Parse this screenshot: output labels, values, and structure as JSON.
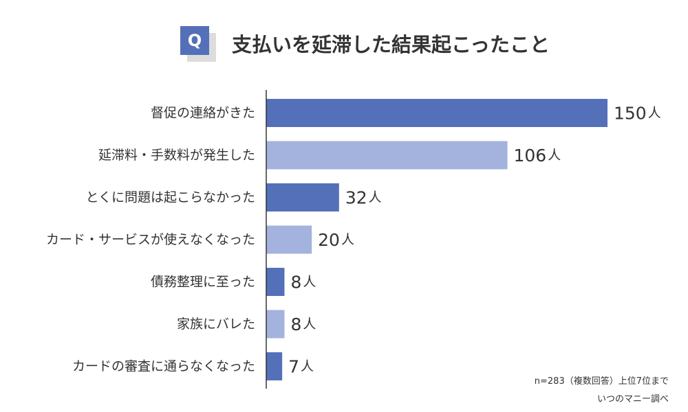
{
  "header": {
    "badge": "Q",
    "title": "支払いを延滞した結果起こったこと"
  },
  "footer": {
    "note": "n=283（複数回答）上位7位まで",
    "source": "いつのマニー調べ"
  },
  "colors": {
    "dark_bar": "#5470b8",
    "light_bar": "#a3b3dd",
    "badge": "#5470b8",
    "axis": "#333333",
    "text": "#333333"
  },
  "chart_data": {
    "type": "bar",
    "orientation": "horizontal",
    "unit": "人",
    "categories": [
      "督促の連絡がきた",
      "延滞料・手数料が発生した",
      "とくに問題は起こらなかった",
      "カード・サービスが使えなくなった",
      "債務整理に至った",
      "家族にバレた",
      "カードの審査に通らなくなった"
    ],
    "values": [
      150,
      106,
      32,
      20,
      8,
      8,
      7
    ],
    "bar_colors": [
      "#5470b8",
      "#a3b3dd",
      "#5470b8",
      "#a3b3dd",
      "#5470b8",
      "#a3b3dd",
      "#5470b8"
    ],
    "xlim": [
      0,
      150
    ],
    "grid": false,
    "legend": "none"
  }
}
